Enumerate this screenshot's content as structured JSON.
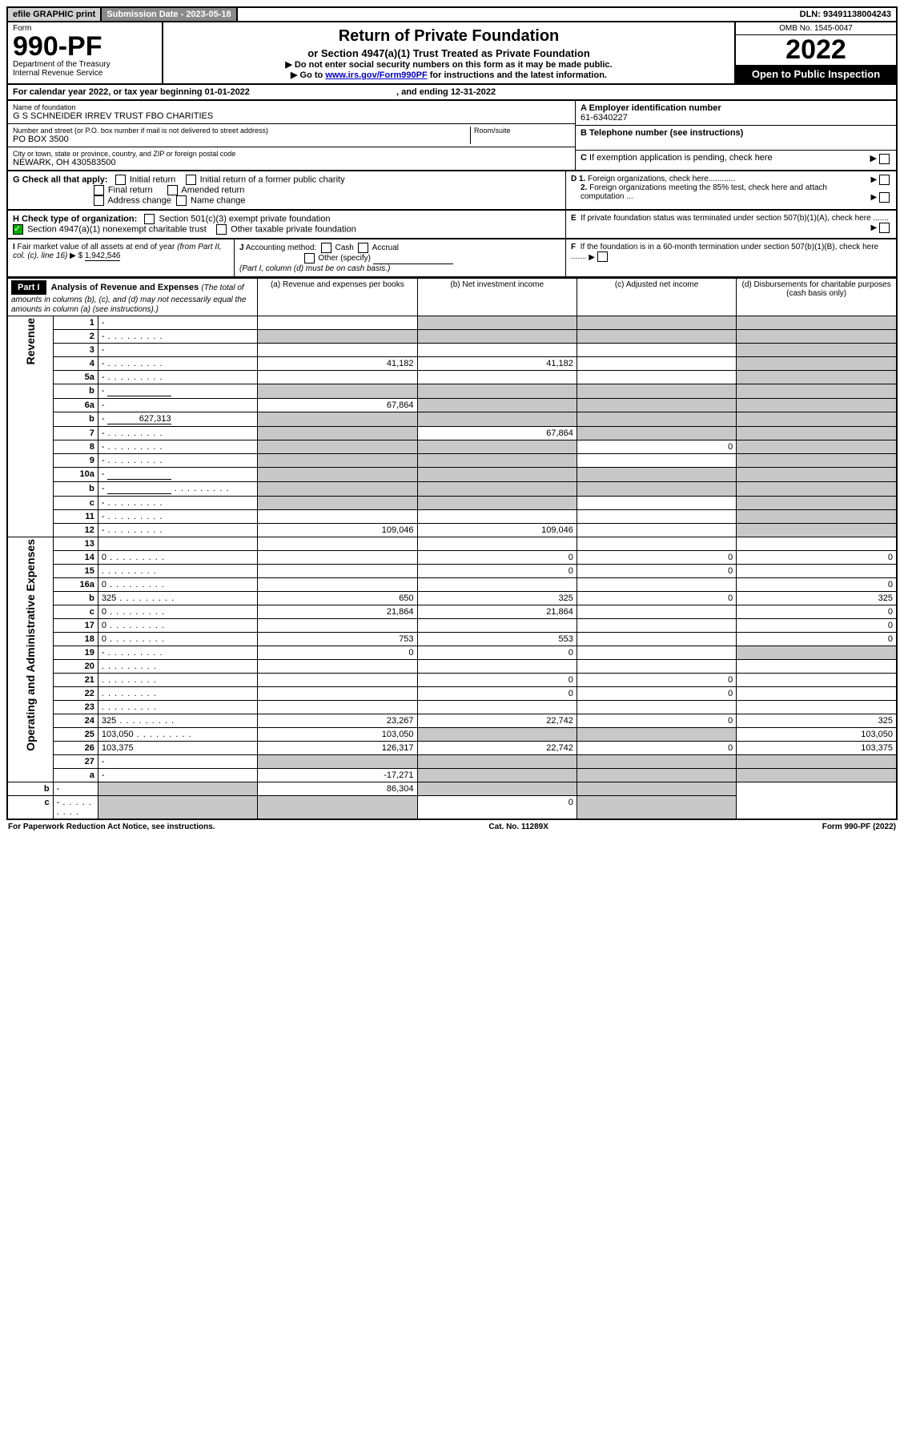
{
  "top": {
    "efile": "efile GRAPHIC print",
    "submission_label": "Submission Date - 2023-05-18",
    "dln": "DLN: 93491138004243"
  },
  "header": {
    "form_label": "Form",
    "form_number": "990-PF",
    "dept": "Department of the Treasury",
    "irs": "Internal Revenue Service",
    "title": "Return of Private Foundation",
    "subtitle": "or Section 4947(a)(1) Trust Treated as Private Foundation",
    "note1": "▶ Do not enter social security numbers on this form as it may be made public.",
    "note2_pre": "▶ Go to ",
    "note2_link": "www.irs.gov/Form990PF",
    "note2_post": " for instructions and the latest information.",
    "omb": "OMB No. 1545-0047",
    "year": "2022",
    "inspect": "Open to Public Inspection"
  },
  "calyear": "For calendar year 2022, or tax year beginning 01-01-2022",
  "calyear_end": ", and ending 12-31-2022",
  "id": {
    "name_label": "Name of foundation",
    "name": "G S SCHNEIDER IRREV TRUST FBO CHARITIES",
    "addr_label": "Number and street (or P.O. box number if mail is not delivered to street address)",
    "addr": "PO BOX 3500",
    "room_label": "Room/suite",
    "city_label": "City or town, state or province, country, and ZIP or foreign postal code",
    "city": "NEWARK, OH  430583500",
    "a_label": "A Employer identification number",
    "a_val": "61-6340227",
    "b_label": "B Telephone number (see instructions)",
    "c_label": "C If exemption application is pending, check here",
    "d1": "D 1. Foreign organizations, check here............",
    "d2": "2. Foreign organizations meeting the 85% test, check here and attach computation ...",
    "e": "E  If private foundation status was terminated under section 507(b)(1)(A), check here .......",
    "f": "F  If the foundation is in a 60-month termination under section 507(b)(1)(B), check here .......",
    "g_label": "G Check all that apply:",
    "g_initial": "Initial return",
    "g_initial_former": "Initial return of a former public charity",
    "g_final": "Final return",
    "g_amended": "Amended return",
    "g_address": "Address change",
    "g_name": "Name change",
    "h_label": "H Check type of organization:",
    "h_501c3": "Section 501(c)(3) exempt private foundation",
    "h_4947": "Section 4947(a)(1) nonexempt charitable trust",
    "h_other": "Other taxable private foundation",
    "i_label": "I Fair market value of all assets at end of year (from Part II, col. (c), line 16)",
    "i_val": "1,942,546",
    "j_label": "J Accounting method:",
    "j_cash": "Cash",
    "j_accrual": "Accrual",
    "j_other": "Other (specify)",
    "j_note": "(Part I, column (d) must be on cash basis.)"
  },
  "part1": {
    "hdr": "Part I",
    "title": "Analysis of Revenue and Expenses",
    "title_note": "(The total of amounts in columns (b), (c), and (d) may not necessarily equal the amounts in column (a) (see instructions).)",
    "col_a": "(a)  Revenue and expenses per books",
    "col_b": "(b)  Net investment income",
    "col_c": "(c)  Adjusted net income",
    "col_d": "(d)  Disbursements for charitable purposes (cash basis only)",
    "side_rev": "Revenue",
    "side_exp": "Operating and Administrative Expenses"
  },
  "rows": [
    {
      "n": "1",
      "d": "-",
      "a": "",
      "b": "-",
      "c": "-"
    },
    {
      "n": "2",
      "d": "-",
      "dots": true,
      "a": "-",
      "b": "-",
      "c": "-"
    },
    {
      "n": "3",
      "d": "-",
      "a": "",
      "b": "",
      "c": ""
    },
    {
      "n": "4",
      "d": "-",
      "dots": true,
      "a": "41,182",
      "b": "41,182",
      "c": ""
    },
    {
      "n": "5a",
      "d": "-",
      "dots": true,
      "a": "",
      "b": "",
      "c": ""
    },
    {
      "n": "b",
      "d": "-",
      "ul": true,
      "a": "-",
      "b": "-",
      "c": "-"
    },
    {
      "n": "6a",
      "d": "-",
      "a": "67,864",
      "b": "-",
      "c": "-"
    },
    {
      "n": "b",
      "d": "-",
      "ul": true,
      "ulval": "627,313",
      "a": "-",
      "b": "-",
      "c": "-"
    },
    {
      "n": "7",
      "d": "-",
      "dots": true,
      "a": "-",
      "b": "67,864",
      "c": "-"
    },
    {
      "n": "8",
      "d": "-",
      "dots": true,
      "a": "-",
      "b": "-",
      "c": "0"
    },
    {
      "n": "9",
      "d": "-",
      "dots": true,
      "a": "-",
      "b": "-",
      "c": ""
    },
    {
      "n": "10a",
      "d": "-",
      "ul": true,
      "a": "-",
      "b": "-",
      "c": "-"
    },
    {
      "n": "b",
      "d": "-",
      "dots": true,
      "ul": true,
      "a": "-",
      "b": "-",
      "c": "-"
    },
    {
      "n": "c",
      "d": "-",
      "dots": true,
      "a": "-",
      "b": "-",
      "c": ""
    },
    {
      "n": "11",
      "d": "-",
      "dots": true,
      "a": "",
      "b": "",
      "c": ""
    },
    {
      "n": "12",
      "d": "-",
      "dots": true,
      "a": "109,046",
      "b": "109,046",
      "c": ""
    },
    {
      "n": "13",
      "d": "",
      "a": "",
      "b": "",
      "c": ""
    },
    {
      "n": "14",
      "d": "0",
      "dots": true,
      "a": "",
      "b": "0",
      "c": "0"
    },
    {
      "n": "15",
      "d": "",
      "dots": true,
      "a": "",
      "b": "0",
      "c": "0"
    },
    {
      "n": "16a",
      "d": "0",
      "dots": true,
      "a": "",
      "b": "",
      "c": ""
    },
    {
      "n": "b",
      "d": "325",
      "dots": true,
      "a": "650",
      "b": "325",
      "c": "0"
    },
    {
      "n": "c",
      "d": "0",
      "dots": true,
      "a": "21,864",
      "b": "21,864",
      "c": ""
    },
    {
      "n": "17",
      "d": "0",
      "dots": true,
      "a": "",
      "b": "",
      "c": ""
    },
    {
      "n": "18",
      "d": "0",
      "dots": true,
      "a": "753",
      "b": "553",
      "c": ""
    },
    {
      "n": "19",
      "d": "-",
      "dots": true,
      "a": "0",
      "b": "0",
      "c": ""
    },
    {
      "n": "20",
      "d": "",
      "dots": true,
      "a": "",
      "b": "",
      "c": ""
    },
    {
      "n": "21",
      "d": "",
      "dots": true,
      "a": "",
      "b": "0",
      "c": "0"
    },
    {
      "n": "22",
      "d": "",
      "dots": true,
      "a": "",
      "b": "0",
      "c": "0"
    },
    {
      "n": "23",
      "d": "",
      "dots": true,
      "a": "",
      "b": "",
      "c": ""
    },
    {
      "n": "24",
      "d": "325",
      "dots": true,
      "a": "23,267",
      "b": "22,742",
      "c": "0"
    },
    {
      "n": "25",
      "d": "103,050",
      "dots": true,
      "a": "103,050",
      "b": "-",
      "c": "-"
    },
    {
      "n": "26",
      "d": "103,375",
      "a": "126,317",
      "b": "22,742",
      "c": "0"
    },
    {
      "n": "27",
      "d": "-",
      "a": "-",
      "b": "-",
      "c": "-"
    },
    {
      "n": "a",
      "d": "-",
      "a": "-17,271",
      "b": "-",
      "c": "-"
    },
    {
      "n": "b",
      "d": "-",
      "a": "-",
      "b": "86,304",
      "c": "-"
    },
    {
      "n": "c",
      "d": "-",
      "dots": true,
      "a": "-",
      "b": "-",
      "c": "0"
    }
  ],
  "footer": {
    "left": "For Paperwork Reduction Act Notice, see instructions.",
    "mid": "Cat. No. 11289X",
    "right": "Form 990-PF (2022)"
  }
}
